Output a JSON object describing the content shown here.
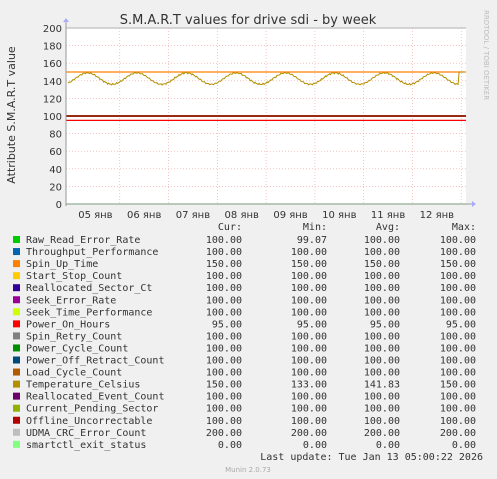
{
  "chart_data": {
    "type": "line",
    "title": "S.M.A.R.T values for drive sdi - by week",
    "ylabel": "Attribute S.M.A.R.T value",
    "side_label": "RRDTOOL / TOBI OETIKER",
    "ylim": [
      0,
      200
    ],
    "yticks": [
      0,
      20,
      40,
      60,
      80,
      100,
      120,
      140,
      160,
      180,
      200
    ],
    "xticks": [
      "05 янв",
      "06 янв",
      "07 янв",
      "08 янв",
      "09 янв",
      "10 янв",
      "11 янв",
      "12 янв"
    ],
    "grid": true,
    "temperature_series": {
      "name": "Temperature_Celsius",
      "min": 136,
      "max": 150,
      "cycles": 8
    },
    "header": {
      "cur": "Cur:",
      "min": "Min:",
      "avg": "Avg:",
      "max": "Max:"
    },
    "series": [
      {
        "name": "Raw_Read_Error_Rate",
        "color": "#00cc00",
        "cur": "100.00",
        "min": "99.07",
        "avg": "100.00",
        "max": "100.00",
        "value": 100
      },
      {
        "name": "Throughput_Performance",
        "color": "#0066b3",
        "cur": "100.00",
        "min": "100.00",
        "avg": "100.00",
        "max": "100.00",
        "value": 100
      },
      {
        "name": "Spin_Up_Time",
        "color": "#ff8000",
        "cur": "150.00",
        "min": "150.00",
        "avg": "150.00",
        "max": "150.00",
        "value": 150
      },
      {
        "name": "Start_Stop_Count",
        "color": "#ffcc00",
        "cur": "100.00",
        "min": "100.00",
        "avg": "100.00",
        "max": "100.00",
        "value": 100
      },
      {
        "name": "Reallocated_Sector_Ct",
        "color": "#330099",
        "cur": "100.00",
        "min": "100.00",
        "avg": "100.00",
        "max": "100.00",
        "value": 100
      },
      {
        "name": "Seek_Error_Rate",
        "color": "#990099",
        "cur": "100.00",
        "min": "100.00",
        "avg": "100.00",
        "max": "100.00",
        "value": 100
      },
      {
        "name": "Seek_Time_Performance",
        "color": "#ccff00",
        "cur": "100.00",
        "min": "100.00",
        "avg": "100.00",
        "max": "100.00",
        "value": 100
      },
      {
        "name": "Power_On_Hours",
        "color": "#ff0000",
        "cur": "95.00",
        "min": "95.00",
        "avg": "95.00",
        "max": "95.00",
        "value": 95
      },
      {
        "name": "Spin_Retry_Count",
        "color": "#808080",
        "cur": "100.00",
        "min": "100.00",
        "avg": "100.00",
        "max": "100.00",
        "value": 100
      },
      {
        "name": "Power_Cycle_Count",
        "color": "#008f00",
        "cur": "100.00",
        "min": "100.00",
        "avg": "100.00",
        "max": "100.00",
        "value": 100
      },
      {
        "name": "Power_Off_Retract_Count",
        "color": "#00487d",
        "cur": "100.00",
        "min": "100.00",
        "avg": "100.00",
        "max": "100.00",
        "value": 100
      },
      {
        "name": "Load_Cycle_Count",
        "color": "#b35a00",
        "cur": "100.00",
        "min": "100.00",
        "avg": "100.00",
        "max": "100.00",
        "value": 100
      },
      {
        "name": "Temperature_Celsius",
        "color": "#b38f00",
        "cur": "150.00",
        "min": "133.00",
        "avg": "141.83",
        "max": "150.00",
        "value": 142
      },
      {
        "name": "Reallocated_Event_Count",
        "color": "#6b006b",
        "cur": "100.00",
        "min": "100.00",
        "avg": "100.00",
        "max": "100.00",
        "value": 100
      },
      {
        "name": "Current_Pending_Sector",
        "color": "#8fb300",
        "cur": "100.00",
        "min": "100.00",
        "avg": "100.00",
        "max": "100.00",
        "value": 100
      },
      {
        "name": "Offline_Uncorrectable",
        "color": "#b30000",
        "cur": "100.00",
        "min": "100.00",
        "avg": "100.00",
        "max": "100.00",
        "value": 100
      },
      {
        "name": "UDMA_CRC_Error_Count",
        "color": "#bebebe",
        "cur": "200.00",
        "min": "200.00",
        "avg": "200.00",
        "max": "200.00",
        "value": 200
      },
      {
        "name": "smartctl_exit_status",
        "color": "#80ff80",
        "cur": "0.00",
        "min": "0.00",
        "avg": "0.00",
        "max": "0.00",
        "value": 0
      }
    ],
    "last_update": "Last update: Tue Jan 13 05:00:22 2026",
    "footer": "Munin 2.0.73"
  }
}
